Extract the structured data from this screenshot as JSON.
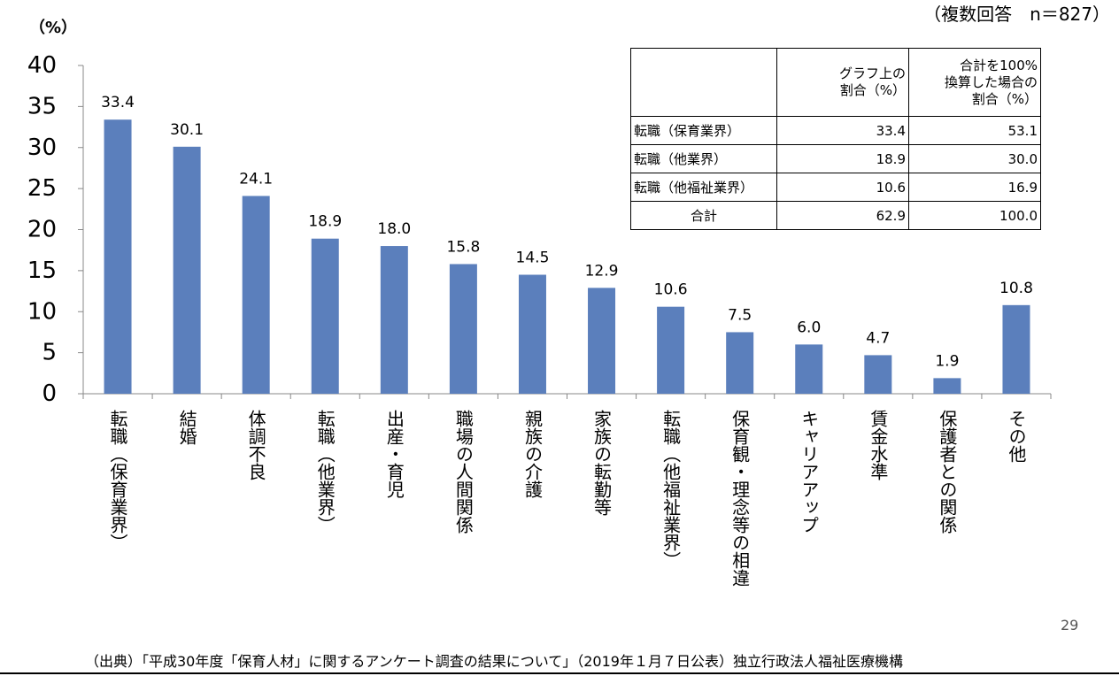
{
  "respondents": "（複数回答　n＝827）",
  "chart_data": {
    "type": "bar",
    "ylabel": "（%）",
    "ylim": [
      0,
      40
    ],
    "yticks": [
      0,
      5,
      10,
      15,
      20,
      25,
      30,
      35,
      40
    ],
    "categories": [
      "転職（保育業界）",
      "結婚",
      "体調不良",
      "転職（他業界）",
      "出産・育児",
      "職場の人間関係",
      "親族の介護",
      "家族の転勤等",
      "転職（他福祉業界）",
      "保育観・理念等の相違",
      "キャリアアップ",
      "賃金水準",
      "保護者との関係",
      "その他"
    ],
    "values": [
      33.4,
      30.1,
      24.1,
      18.9,
      18.0,
      15.8,
      14.5,
      12.9,
      10.6,
      7.5,
      6.0,
      4.7,
      1.9,
      10.8
    ],
    "value_labels": [
      "33.4",
      "30.1",
      "24.1",
      "18.9",
      "18.0",
      "15.8",
      "14.5",
      "12.9",
      "10.6",
      "7.5",
      "6.0",
      "4.7",
      "1.9",
      "10.8"
    ],
    "bar_color": "#5b7fbc",
    "grid": false
  },
  "table": {
    "headers": [
      "",
      "グラフ上の\n割合（%）",
      "合計を100%\n換算した場合の\n割合（%）"
    ],
    "rows": [
      [
        "転職（保育業界）",
        "33.4",
        "53.1"
      ],
      [
        "転職（他業界）",
        "18.9",
        "30.0"
      ],
      [
        "転職（他福祉業界）",
        "10.6",
        "16.9"
      ]
    ],
    "total": [
      "合計",
      "62.9",
      "100.0"
    ]
  },
  "page_number": "29",
  "source": "（出典）「平成30年度「保育人材」に関するアンケート調査の結果について」（2019年１月７日公表）独立行政法人福祉医療機構"
}
